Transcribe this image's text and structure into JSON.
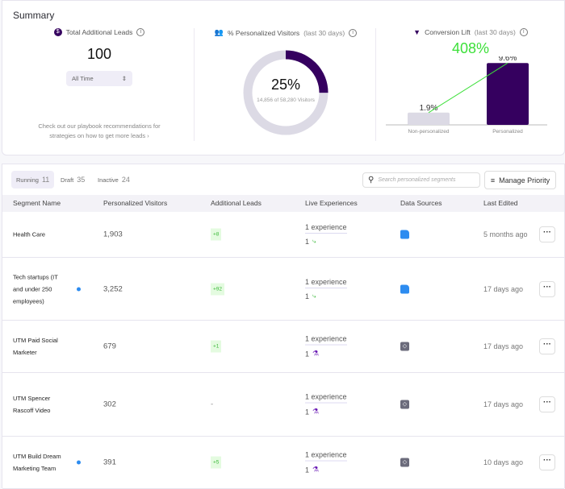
{
  "summary": {
    "title": "Summary",
    "leads": {
      "label": "Total Additional Leads",
      "value": "100",
      "period": "All Time",
      "note1": "Check out our playbook recommendations for",
      "note2": "strategies on how to get more leads",
      "note_arrow": "›"
    },
    "visitors": {
      "label": "% Personalized Visitors",
      "sub": "(last 30 days)",
      "percent": "25%",
      "fraction": 0.25,
      "detail": "14,856 of 58,280 Visitors"
    },
    "lift": {
      "label": "Conversion Lift",
      "sub": "(last 30 days)",
      "value": "408%"
    },
    "colors": {
      "primary": "#35005f",
      "lift": "#3de03a"
    }
  },
  "chart_data": {
    "type": "bar",
    "categories": [
      "Non-personalized",
      "Personalized"
    ],
    "values": [
      1.9,
      9.6
    ],
    "labels": [
      "1.9%",
      "9.6%"
    ],
    "ylim": [
      0,
      10
    ]
  },
  "tabs": [
    {
      "label": "Running",
      "count": "11"
    },
    {
      "label": "Draft",
      "count": "35"
    },
    {
      "label": "Inactive",
      "count": "24"
    }
  ],
  "search": {
    "placeholder": "Search personalized segments"
  },
  "manage_priority": "Manage Priority",
  "columns": [
    "Segment Name",
    "Personalized Visitors",
    "Additional Leads",
    "Live Experiences",
    "Data Sources",
    "Last Edited"
  ],
  "rows": [
    {
      "name": "Health Care",
      "visitors": "1,903",
      "leads": "+8",
      "experience": "1 experience",
      "count": "1",
      "type": "ab-test",
      "source": "segment",
      "edited": "5 months ago",
      "dot": false
    },
    {
      "name": "Tech startups (IT and under 250 employees)",
      "visitors": "3,252",
      "leads": "+92",
      "experience": "1 experience",
      "count": "1",
      "type": "ab-test",
      "source": "segment",
      "edited": "17 days ago",
      "dot": true
    },
    {
      "name": "UTM Paid Social Marketer",
      "visitors": "679",
      "leads": "+1",
      "experience": "1 experience",
      "count": "1",
      "type": "experiment",
      "source": "code",
      "edited": "17 days ago",
      "dot": false
    },
    {
      "name": "UTM Spencer Rascoff Video",
      "visitors": "302",
      "leads": "-",
      "experience": "1 experience",
      "count": "1",
      "type": "experiment",
      "source": "code",
      "edited": "17 days ago",
      "dot": false
    },
    {
      "name": "UTM Build Dream Marketing Team",
      "visitors": "391",
      "leads": "+5",
      "experience": "1 experience",
      "count": "1",
      "type": "experiment",
      "source": "code",
      "edited": "10 days ago",
      "dot": true
    }
  ]
}
